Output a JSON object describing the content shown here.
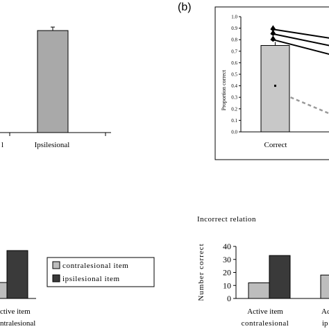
{
  "panel_b_label": "(b)",
  "legend": {
    "items": [
      {
        "label": "contralesional item",
        "color": "#bdbdbd"
      },
      {
        "label": "ipsilesional item",
        "color": "#3a3a3a"
      }
    ]
  },
  "chart_data": [
    {
      "type": "bar",
      "panel": "top-left (cropped)",
      "categories": [
        "l",
        "Ipsilesional"
      ],
      "values": [
        null,
        0.88
      ],
      "error_bars": [
        null,
        0.03
      ],
      "bar_color": "#a9a9a9"
    },
    {
      "type": "bar",
      "panel": "top-right (b)",
      "categories": [
        "Correct"
      ],
      "values": [
        0.75
      ],
      "ylabel": "Proportion correct",
      "ylim": [
        0,
        1.0
      ],
      "yticks": [
        "0.0",
        "0.1",
        "0.2",
        "0.3",
        "0.4",
        "0.5",
        "0.6",
        "0.7",
        "0.8",
        "0.9",
        "1.0"
      ],
      "bar_color": "#c8c8c8",
      "lines": [
        {
          "style": "solid",
          "from": [
            0.08,
            0.89
          ],
          "to": [
            1.0,
            0.8
          ]
        },
        {
          "style": "solid",
          "from": [
            0.08,
            0.85
          ],
          "to": [
            1.0,
            0.73
          ]
        },
        {
          "style": "solid",
          "from": [
            0.08,
            0.8
          ],
          "to": [
            1.0,
            0.65
          ]
        },
        {
          "style": "dashed",
          "from": [
            0.32,
            0.3
          ],
          "to": [
            1.0,
            0.12
          ]
        }
      ]
    },
    {
      "type": "bar",
      "panel": "bottom-left (cropped)",
      "categories": [
        "ctive item",
        "ontralesional"
      ],
      "series": [
        {
          "values": [
            null,
            10
          ],
          "color": "#bdbdbd"
        },
        {
          "values": [
            null,
            30
          ],
          "color": "#3a3a3a"
        }
      ],
      "xlabel_lines": [
        "ctive item",
        "ntralesional"
      ]
    },
    {
      "type": "bar",
      "panel": "bottom-right",
      "title": "Incorrect relation",
      "ylabel": "Number correct",
      "ylim": [
        0,
        40
      ],
      "yticks": [
        "0",
        "10",
        "20",
        "30",
        "40"
      ],
      "categories": [
        "Active item contralesional",
        "Ac… ip…"
      ],
      "xlabel_lines": [
        [
          "Active item",
          "contralesional"
        ],
        [
          "Ac",
          "ip"
        ]
      ],
      "series": [
        {
          "name": "contralesional item",
          "values": [
            12,
            18
          ],
          "color": "#bdbdbd"
        },
        {
          "name": "ipsilesional item",
          "values": [
            33,
            null
          ],
          "color": "#3a3a3a"
        }
      ]
    }
  ]
}
